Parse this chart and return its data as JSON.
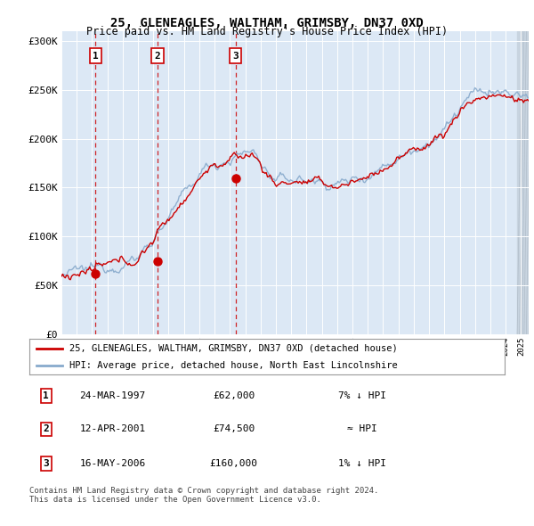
{
  "title": "25, GLENEAGLES, WALTHAM, GRIMSBY, DN37 0XD",
  "subtitle": "Price paid vs. HM Land Registry's House Price Index (HPI)",
  "bg_color": "#dce8f5",
  "line_color_red": "#cc0000",
  "line_color_blue": "#88aacc",
  "grid_color": "#ffffff",
  "ylim": [
    0,
    310000
  ],
  "yticks": [
    0,
    50000,
    100000,
    150000,
    200000,
    250000,
    300000
  ],
  "ytick_labels": [
    "£0",
    "£50K",
    "£100K",
    "£150K",
    "£200K",
    "£250K",
    "£300K"
  ],
  "purchases": [
    {
      "date_num": 1997.23,
      "price": 62000,
      "label": "1"
    },
    {
      "date_num": 2001.28,
      "price": 74500,
      "label": "2"
    },
    {
      "date_num": 2006.37,
      "price": 160000,
      "label": "3"
    }
  ],
  "legend_red": "25, GLENEAGLES, WALTHAM, GRIMSBY, DN37 0XD (detached house)",
  "legend_blue": "HPI: Average price, detached house, North East Lincolnshire",
  "table_rows": [
    {
      "num": "1",
      "date": "24-MAR-1997",
      "price": "£62,000",
      "hpi": "7% ↓ HPI"
    },
    {
      "num": "2",
      "date": "12-APR-2001",
      "price": "£74,500",
      "hpi": "≈ HPI"
    },
    {
      "num": "3",
      "date": "16-MAY-2006",
      "price": "£160,000",
      "hpi": "1% ↓ HPI"
    }
  ],
  "footer": "Contains HM Land Registry data © Crown copyright and database right 2024.\nThis data is licensed under the Open Government Licence v3.0.",
  "xmin": 1995.0,
  "xmax": 2025.5
}
